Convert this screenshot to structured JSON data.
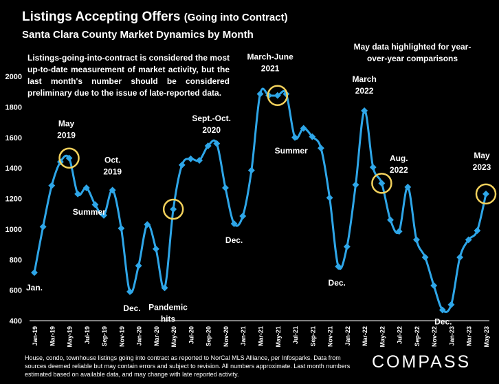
{
  "header": {
    "title": "Listings Accepting Offers",
    "title_suffix": "(Going into Contract)",
    "subtitle": "Santa Clara County Market Dynamics by Month"
  },
  "note": "Listings-going-into-contract is considered the most up-to-date measurement of market activity, but the last month's number should be considered preliminary due to the issue of late-reported data.",
  "highlight_note": "May data highlighted for year-over-year comparisons",
  "footer": "House, condo, townhouse listings going into contract as reported to NorCal MLS Alliance, per Infosparks. Data from sources deemed reliable but may contain errors and subject to revision. All numbers approximate. Last month numbers estimated based on available data, and may change with late reported activity.",
  "logo": "COMPASS",
  "colors": {
    "line": "#2EA6E8",
    "highlight": "#F2D15C",
    "background": "#000000",
    "text": "#FFFFFF"
  },
  "chart_data": {
    "type": "line",
    "ylim": [
      400,
      2000
    ],
    "yticks": [
      400,
      600,
      800,
      1000,
      1200,
      1400,
      1600,
      1800,
      2000
    ],
    "grid": false,
    "x": [
      "Jan-19",
      "Feb-19",
      "Mar-19",
      "Apr-19",
      "May-19",
      "Jun-19",
      "Jul-19",
      "Aug-19",
      "Sep-19",
      "Oct-19",
      "Nov-19",
      "Dec-19",
      "Jan-20",
      "Feb-20",
      "Mar-20",
      "Apr-20",
      "May-20",
      "Jun-20",
      "Jul-20",
      "Aug-20",
      "Sep-20",
      "Oct-20",
      "Nov-20",
      "Dec-20",
      "Jan-21",
      "Feb-21",
      "Mar-21",
      "Apr-21",
      "May-21",
      "Jun-21",
      "Jul-21",
      "Aug-21",
      "Sep-21",
      "Oct-21",
      "Nov-21",
      "Dec-21",
      "Jan-22",
      "Feb-22",
      "Mar-22",
      "Apr-22",
      "May-22",
      "Jun-22",
      "Jul-22",
      "Aug-22",
      "Sep-22",
      "Oct-22",
      "Nov-22",
      "Dec-22",
      "Jan-23",
      "Feb-23",
      "Mar-23",
      "Apr-23",
      "May-23"
    ],
    "x_tick_labels": [
      "Jan-19",
      "Mar-19",
      "May-19",
      "Jul-19",
      "Sep-19",
      "Nov-19",
      "Jan-20",
      "Mar-20",
      "May-20",
      "Jul-20",
      "Sep-20",
      "Nov-20",
      "Jan-21",
      "Mar-21",
      "May-21",
      "Jul-21",
      "Sep-21",
      "Nov-21",
      "Jan-22",
      "Mar-22",
      "May-22",
      "Jul-22",
      "Sep-22",
      "Nov-22",
      "Jan-23",
      "Mar-23",
      "May-23"
    ],
    "series": [
      {
        "values": [
          715,
          1015,
          1285,
          1440,
          1465,
          1230,
          1270,
          1160,
          1090,
          1255,
          1005,
          590,
          760,
          1030,
          870,
          615,
          1130,
          1420,
          1460,
          1450,
          1545,
          1560,
          1270,
          1035,
          1085,
          1385,
          1885,
          1875,
          1875,
          1885,
          1600,
          1660,
          1605,
          1530,
          1205,
          755,
          885,
          1290,
          1775,
          1405,
          1300,
          1060,
          985,
          1275,
          930,
          815,
          630,
          470,
          505,
          815,
          930,
          990,
          1230
        ]
      }
    ],
    "highlights": [
      {
        "x": "May-19",
        "y": 1465
      },
      {
        "x": "May-20",
        "y": 1130
      },
      {
        "x": "May-21",
        "y": 1875
      },
      {
        "x": "May-22",
        "y": 1300
      },
      {
        "x": "May-23",
        "y": 1230
      }
    ],
    "annotations": [
      {
        "text": "Jan.",
        "x": "Jan-19",
        "y": 715,
        "dx": 0,
        "dy": 26
      },
      {
        "text": "May|2019",
        "x": "May-19",
        "y": 1465,
        "dx": -4,
        "dy": -46
      },
      {
        "text": "Summer",
        "x": "Jul-19",
        "y": 1230,
        "dx": 4,
        "dy": 30
      },
      {
        "text": "Oct.|2019",
        "x": "Oct-19",
        "y": 1255,
        "dx": 0,
        "dy": -40
      },
      {
        "text": "Dec.",
        "x": "Dec-19",
        "y": 590,
        "dx": 3,
        "dy": 28
      },
      {
        "text": "Pandemic|hits",
        "x": "Apr-20",
        "y": 615,
        "dx": 5,
        "dy": 32
      },
      {
        "text": "Sept.-Oct.|2020",
        "x": "Sep-20",
        "y": 1545,
        "dx": 5,
        "dy": -36
      },
      {
        "text": "Dec.",
        "x": "Dec-20",
        "y": 1035,
        "dx": 0,
        "dy": 28
      },
      {
        "text": "March-June|2021",
        "x": "Apr-21",
        "y": 1875,
        "dx": 2,
        "dy": -52
      },
      {
        "text": "Summer",
        "x": "Aug-21",
        "y": 1600,
        "dx": -18,
        "dy": 23
      },
      {
        "text": "Dec.",
        "x": "Dec-21",
        "y": 755,
        "dx": -2,
        "dy": 28
      },
      {
        "text": "March|2022",
        "x": "Mar-22",
        "y": 1775,
        "dx": 0,
        "dy": -42
      },
      {
        "text": "Aug.|2022",
        "x": "Aug-22",
        "y": 1275,
        "dx": -13,
        "dy": -38
      },
      {
        "text": "Dec.",
        "x": "Dec-22",
        "y": 470,
        "dx": 1,
        "dy": 21
      },
      {
        "text": "May|2023",
        "x": "May-23",
        "y": 1230,
        "dx": -6,
        "dy": -52
      }
    ]
  }
}
